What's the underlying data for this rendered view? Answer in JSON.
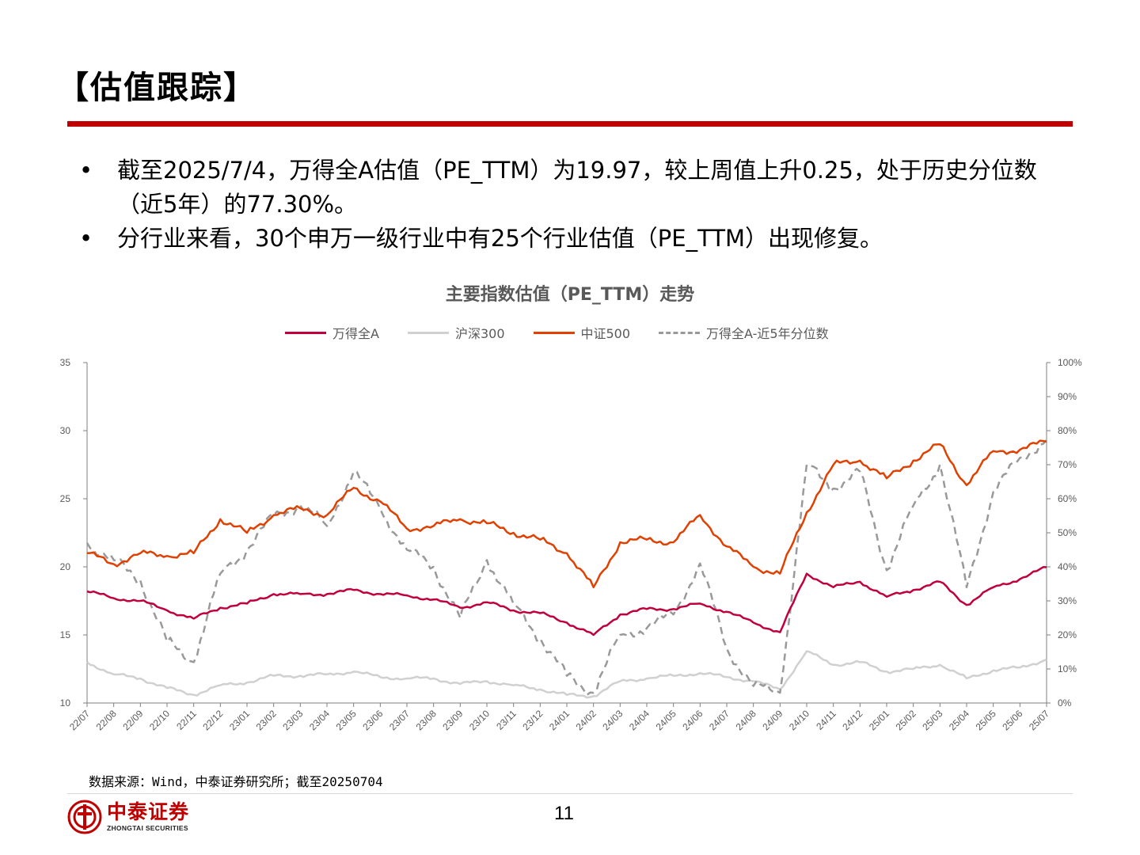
{
  "title": "【估值跟踪】",
  "bullets": [
    "截至2025/7/4，万得全A估值（PE_TTM）为19.97，较上周值上升0.25，处于历史分位数（近5年）的77.30%。",
    "分行业来看，30个申万一级行业中有25个行业估值（PE_TTM）出现修复。"
  ],
  "bullet_symbol": "•",
  "source": "数据来源：Wind，中泰证券研究所；截至20250704",
  "page_number": "11",
  "logo": {
    "cn": "中泰证券",
    "en": "ZHONGTAI SECURITIES"
  },
  "colors": {
    "accent": "#c00000",
    "wanda": "#c0003c",
    "hs300": "#d0d0d0",
    "zz500": "#e04000",
    "pct": "#999999"
  },
  "chart_data": {
    "type": "line",
    "title": "主要指数估值（PE_TTM）走势",
    "categories": [
      "22/07",
      "22/08",
      "22/09",
      "22/10",
      "22/11",
      "22/12",
      "23/01",
      "23/02",
      "23/03",
      "23/04",
      "23/05",
      "23/06",
      "23/07",
      "23/08",
      "23/09",
      "23/10",
      "23/11",
      "23/12",
      "24/01",
      "24/02",
      "24/03",
      "24/04",
      "24/05",
      "24/06",
      "24/07",
      "24/08",
      "24/09",
      "24/10",
      "24/11",
      "24/12",
      "25/01",
      "25/02",
      "25/03",
      "25/04",
      "25/05",
      "25/06",
      "25/07"
    ],
    "y_left": {
      "min": 10,
      "max": 35,
      "ticks": [
        10,
        15,
        20,
        25,
        30,
        35
      ]
    },
    "y_right": {
      "min": 0,
      "max": 100,
      "ticks": [
        "0%",
        "10%",
        "20%",
        "30%",
        "40%",
        "50%",
        "60%",
        "70%",
        "80%",
        "90%",
        "100%"
      ]
    },
    "series": [
      {
        "name": "万得全A",
        "axis": "left",
        "style": "solid",
        "color": "#c0003c",
        "values": [
          18.2,
          17.7,
          17.5,
          16.8,
          16.2,
          17.0,
          17.3,
          18.0,
          18.0,
          18.0,
          18.3,
          18.0,
          17.9,
          17.6,
          17.0,
          17.4,
          16.8,
          16.6,
          15.9,
          15.0,
          16.5,
          16.9,
          16.9,
          17.3,
          16.7,
          15.9,
          15.2,
          19.5,
          18.5,
          18.9,
          17.8,
          18.3,
          18.9,
          17.2,
          18.5,
          19.1,
          19.97
        ]
      },
      {
        "name": "沪深300",
        "axis": "left",
        "style": "solid",
        "color": "#d0d0d0",
        "values": [
          13.0,
          12.1,
          11.8,
          11.1,
          10.6,
          11.3,
          11.5,
          12.0,
          12.0,
          12.1,
          12.3,
          11.9,
          11.8,
          11.8,
          11.4,
          11.6,
          11.3,
          11.0,
          10.6,
          10.5,
          11.6,
          11.8,
          12.0,
          12.2,
          11.9,
          11.6,
          11.0,
          13.8,
          12.8,
          13.0,
          12.3,
          12.5,
          12.8,
          11.8,
          12.4,
          12.6,
          13.2
        ]
      },
      {
        "name": "中证500",
        "axis": "left",
        "style": "solid",
        "color": "#e04000",
        "values": [
          21.0,
          20.2,
          21.0,
          20.8,
          21.0,
          23.5,
          22.5,
          23.8,
          24.3,
          23.8,
          25.8,
          24.8,
          22.8,
          23.0,
          23.5,
          23.2,
          22.5,
          22.0,
          21.0,
          18.5,
          21.8,
          22.0,
          21.8,
          23.8,
          21.5,
          20.0,
          19.5,
          24.0,
          27.5,
          27.8,
          26.5,
          27.8,
          29.0,
          26.0,
          28.5,
          28.6,
          29.2
        ]
      },
      {
        "name": "万得全A-近5年分位数",
        "axis": "right",
        "style": "dashed",
        "color": "#999999",
        "values": [
          47,
          42,
          36,
          18,
          12,
          38,
          45,
          55,
          58,
          52,
          68,
          57,
          45,
          40,
          25,
          42,
          29,
          19,
          8,
          3,
          20,
          22,
          26,
          41,
          16,
          5,
          3,
          70,
          63,
          68,
          39,
          58,
          70,
          34,
          62,
          72,
          77.3
        ]
      }
    ]
  }
}
